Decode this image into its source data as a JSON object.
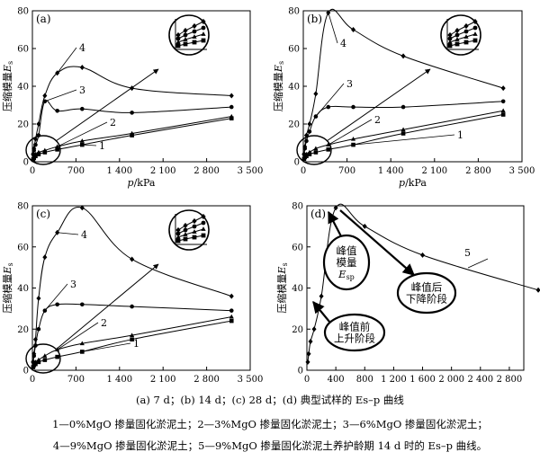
{
  "caption": {
    "main": "(a) 7 d；(b) 14 d；(c) 28 d；(d)  典型试样的 Es–p 曲线",
    "legend_line1": "1—0%MgO 掺量固化淤泥土；2—3%MgO 掺量固化淤泥土；3—6%MgO 掺量固化淤泥土；",
    "legend_line2": "4—9%MgO 掺量固化淤泥土；5—9%MgO 掺量固化淤泥土养护龄期 14 d 时的 Es–p 曲线。"
  },
  "chart_data": [
    {
      "type": "line",
      "panel_label": "(a)",
      "xlabel": "p/kPa",
      "ylabel": "压缩模量Es",
      "xlim": [
        0,
        3500
      ],
      "ylim": [
        0,
        80
      ],
      "xticks": [
        "0",
        "700",
        "1 400",
        "2 100",
        "2 800",
        "3 500"
      ],
      "yticks": [
        "0",
        "20",
        "40",
        "60",
        "80"
      ],
      "series": [
        {
          "name": "1",
          "marker": "square",
          "x": [
            12.5,
            25,
            50,
            100,
            200,
            400,
            800,
            1600,
            3200
          ],
          "y": [
            1.2,
            2,
            3,
            4,
            5,
            6.5,
            9,
            14,
            23
          ]
        },
        {
          "name": "2",
          "marker": "triangle",
          "x": [
            12.5,
            25,
            50,
            100,
            200,
            400,
            800,
            1600,
            3200
          ],
          "y": [
            2,
            3,
            4,
            5,
            6,
            8,
            11,
            15,
            24
          ]
        },
        {
          "name": "3",
          "marker": "circle",
          "x": [
            12.5,
            25,
            50,
            100,
            200,
            400,
            800,
            1600,
            3200
          ],
          "y": [
            4,
            6,
            9,
            14,
            32,
            27,
            28,
            26,
            29
          ]
        },
        {
          "name": "4",
          "marker": "diamond",
          "x": [
            12.5,
            25,
            50,
            100,
            200,
            400,
            800,
            1600,
            3200
          ],
          "y": [
            4,
            7,
            12,
            20,
            35,
            47,
            50,
            39,
            35
          ]
        }
      ]
    },
    {
      "type": "line",
      "panel_label": "(b)",
      "xlabel": "p/kPa",
      "ylabel": "压缩模量Es",
      "xlim": [
        0,
        3500
      ],
      "ylim": [
        0,
        80
      ],
      "xticks": [
        "0",
        "700",
        "1 400",
        "2 100",
        "2 800",
        "3 500"
      ],
      "yticks": [
        "0",
        "20",
        "40",
        "60",
        "80"
      ],
      "series": [
        {
          "name": "1",
          "marker": "square",
          "x": [
            12.5,
            25,
            50,
            100,
            200,
            400,
            800,
            1600,
            3200
          ],
          "y": [
            1.5,
            2.5,
            3,
            4,
            5,
            6.5,
            9,
            15,
            25
          ]
        },
        {
          "name": "2",
          "marker": "triangle",
          "x": [
            12.5,
            25,
            50,
            100,
            200,
            400,
            800,
            1600,
            3200
          ],
          "y": [
            2,
            3,
            4,
            5,
            7,
            9,
            12,
            17,
            27
          ]
        },
        {
          "name": "3",
          "marker": "circle",
          "x": [
            12.5,
            25,
            50,
            100,
            200,
            400,
            800,
            1600,
            3200
          ],
          "y": [
            4,
            7,
            11,
            16,
            24,
            29,
            29,
            29,
            32
          ]
        },
        {
          "name": "4",
          "marker": "diamond",
          "x": [
            12.5,
            25,
            50,
            100,
            200,
            400,
            800,
            1600,
            3200
          ],
          "y": [
            4,
            8,
            14,
            20,
            36,
            79,
            70,
            56,
            39
          ]
        }
      ]
    },
    {
      "type": "line",
      "panel_label": "(c)",
      "xlabel": "p/kPa",
      "ylabel": "压缩模量Es",
      "xlim": [
        0,
        3500
      ],
      "ylim": [
        0,
        80
      ],
      "xticks": [
        "0",
        "700",
        "1 400",
        "2 100",
        "2 800",
        "3 500"
      ],
      "yticks": [
        "0",
        "20",
        "40",
        "60",
        "80"
      ],
      "series": [
        {
          "name": "1",
          "marker": "square",
          "x": [
            12.5,
            25,
            50,
            100,
            200,
            400,
            800,
            1600,
            3200
          ],
          "y": [
            1.5,
            2.5,
            3,
            4,
            5,
            6.5,
            9,
            15,
            24
          ]
        },
        {
          "name": "2",
          "marker": "triangle",
          "x": [
            12.5,
            25,
            50,
            100,
            200,
            400,
            800,
            1600,
            3200
          ],
          "y": [
            2,
            3,
            4,
            5,
            7,
            10,
            13,
            17,
            26
          ]
        },
        {
          "name": "3",
          "marker": "circle",
          "x": [
            12.5,
            25,
            50,
            100,
            200,
            400,
            800,
            1600,
            3200
          ],
          "y": [
            4,
            7,
            12,
            20,
            29,
            32,
            32,
            31,
            29
          ]
        },
        {
          "name": "4",
          "marker": "diamond",
          "x": [
            12.5,
            25,
            50,
            100,
            200,
            400,
            800,
            1600,
            3200
          ],
          "y": [
            4,
            8,
            15,
            35,
            55,
            67,
            79,
            54,
            36
          ]
        }
      ]
    },
    {
      "type": "line",
      "panel_label": "(d)",
      "xlabel": "p/kPa",
      "ylabel": "压缩模量Es",
      "xlim": [
        0,
        3000
      ],
      "ylim": [
        0,
        80
      ],
      "xticks": [
        "0",
        "400",
        "800",
        "1 200",
        "1 600",
        "2 000",
        "2 400",
        "2 800"
      ],
      "yticks": [
        "0",
        "20",
        "40",
        "60",
        "80"
      ],
      "series": [
        {
          "name": "5",
          "marker": "diamond",
          "x": [
            12.5,
            25,
            50,
            100,
            200,
            400,
            800,
            1600,
            3200
          ],
          "y": [
            4,
            8,
            14,
            20,
            36,
            79,
            70,
            56,
            39
          ]
        }
      ],
      "annotations": [
        {
          "lines": [
            "峰值",
            "模量",
            "Esp"
          ]
        },
        {
          "lines": [
            "峰值后",
            "下降阶段"
          ]
        },
        {
          "lines": [
            "峰值前",
            "上升阶段"
          ]
        }
      ]
    }
  ]
}
